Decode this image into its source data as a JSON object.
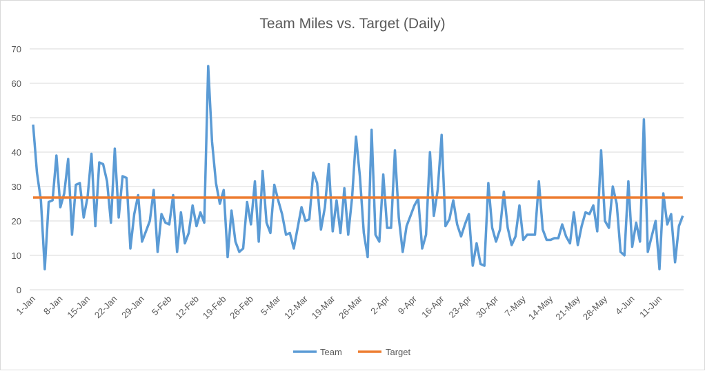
{
  "chart_data": {
    "type": "line",
    "title": "Team Miles vs. Target (Daily)",
    "xlabel": "",
    "ylabel": "",
    "ylim": [
      0,
      70
    ],
    "yticks": [
      0,
      10,
      20,
      30,
      40,
      50,
      60,
      70
    ],
    "grid": true,
    "legend_position": "bottom",
    "x_start": "1-Jan",
    "x_tick_interval_days": 7,
    "x_tick_labels": [
      "1-Jan",
      "8-Jan",
      "15-Jan",
      "22-Jan",
      "29-Jan",
      "5-Feb",
      "12-Feb",
      "19-Feb",
      "26-Feb",
      "5-Mar",
      "12-Mar",
      "19-Mar",
      "26-Mar",
      "2-Apr",
      "9-Apr",
      "16-Apr",
      "23-Apr",
      "30-Apr",
      "7-May",
      "14-May",
      "21-May",
      "28-May",
      "4-Jun",
      "11-Jun"
    ],
    "series": [
      {
        "name": "Team",
        "color": "#5b9bd5",
        "values": [
          48,
          34,
          26,
          6,
          25.5,
          26,
          39,
          24,
          28,
          38,
          16,
          30.5,
          31,
          21,
          27,
          39.5,
          18.5,
          37,
          36.5,
          31.5,
          19.5,
          41,
          21,
          33,
          32.5,
          12,
          22,
          27.5,
          14,
          17,
          20,
          29,
          11,
          22,
          19.5,
          19,
          27.5,
          11,
          22.5,
          13.5,
          16.5,
          24.5,
          18.5,
          22.5,
          19.5,
          65,
          43,
          31,
          25,
          29,
          9.5,
          23,
          14,
          11,
          12,
          25.5,
          19,
          31.5,
          14,
          34.5,
          19.5,
          16.5,
          30.5,
          26,
          22,
          16,
          16.5,
          12,
          18,
          24,
          20,
          20.5,
          34,
          31,
          17.5,
          24,
          36.5,
          17,
          26,
          16.5,
          29.5,
          16,
          27,
          44.5,
          33,
          16.5,
          9.5,
          46.5,
          16,
          14,
          33.5,
          18,
          18,
          40.5,
          21,
          11,
          18.5,
          21.5,
          24.5,
          26.5,
          12,
          16,
          40,
          21.5,
          29,
          45,
          18.5,
          20.5,
          26,
          19,
          15.5,
          19,
          22,
          7,
          13.5,
          7.5,
          7,
          31,
          18,
          14,
          17.5,
          28.5,
          18,
          13,
          15.5,
          24.5,
          14.5,
          16,
          16,
          16,
          31.5,
          17.5,
          14.5,
          14.5,
          15,
          15,
          19,
          15.5,
          13.5,
          22.5,
          13,
          18.5,
          22.5,
          22,
          24.5,
          17,
          40.5,
          20,
          18,
          30,
          25,
          11,
          10,
          31.5,
          12.5,
          19.5,
          14,
          49.5,
          11,
          15.5,
          20,
          6,
          28,
          19,
          22,
          8,
          18.5,
          21.5
        ]
      },
      {
        "name": "Target",
        "color": "#ed7d31",
        "constant": 26.8
      }
    ]
  }
}
